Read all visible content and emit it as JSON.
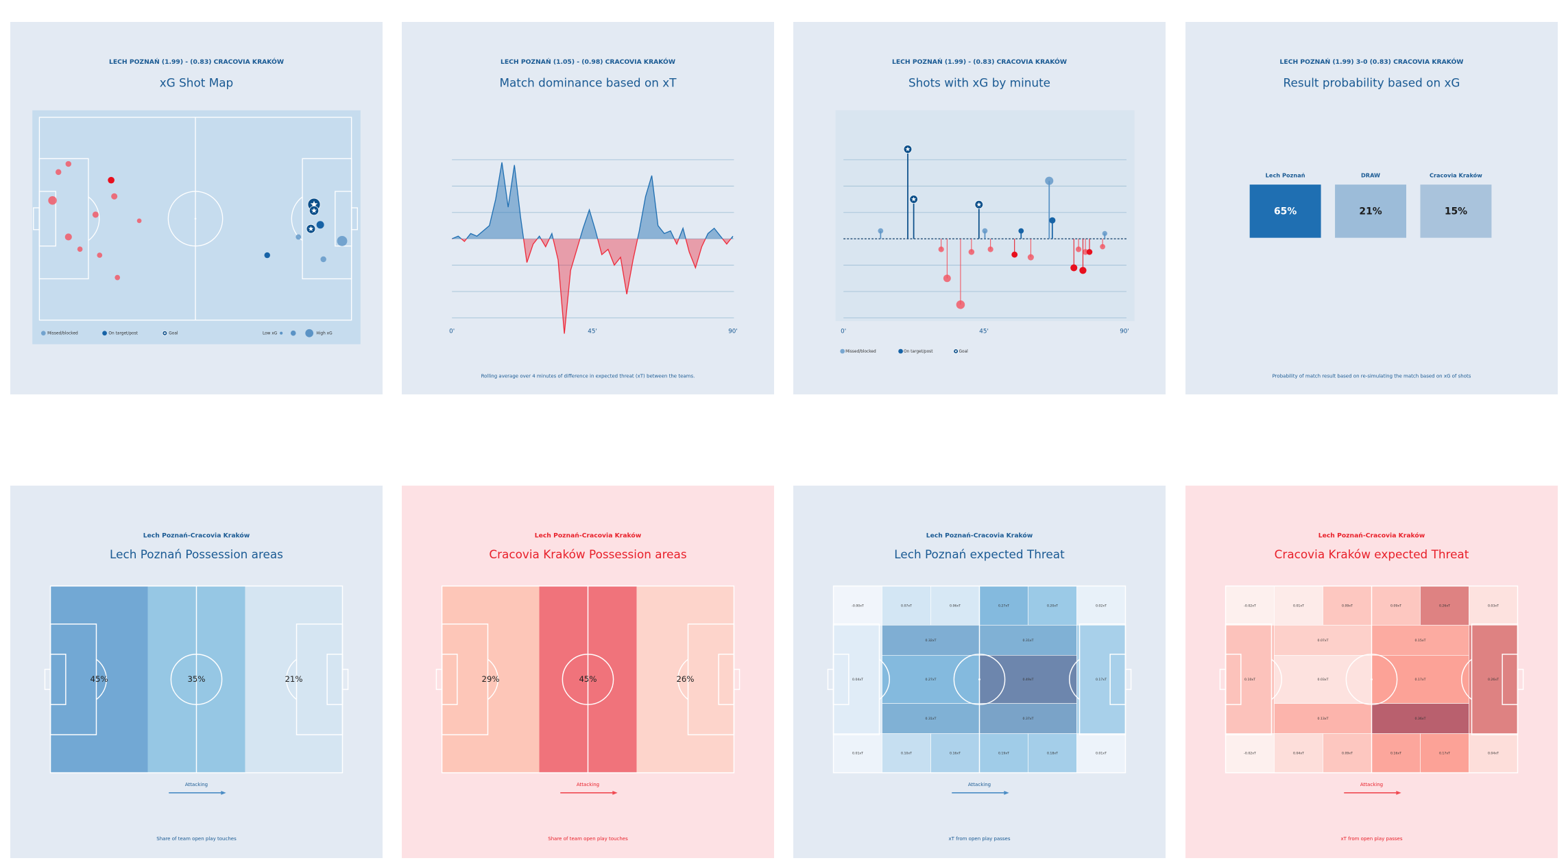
{
  "chart_data": [
    {
      "type": "scatter",
      "subtitle": "LECH POZNAŃ (1.99) - (0.83) CRACOVIA KRAKÓW",
      "title": "xG Shot Map",
      "background": "#e3eaf3",
      "theme_color": "#1a5a93",
      "pitch_color": "#c6dcee",
      "xlim": [
        0,
        100
      ],
      "ylim": [
        0,
        100
      ],
      "series": [
        {
          "marker": "missed",
          "color": "#f4505c",
          "x": [
            4.2,
            9.3,
            6.1,
            24,
            18,
            9.3,
            13,
            19.3,
            25,
            32
          ],
          "y": [
            41,
            23,
            27,
            39,
            48,
            59,
            65,
            68,
            79,
            51
          ],
          "xg": [
            0.12,
            0.03,
            0.03,
            0.04,
            0.04,
            0.06,
            0.02,
            0.02,
            0.02,
            0.01
          ]
        },
        {
          "marker": "on_target",
          "color": "#e8101e",
          "x": [
            23
          ],
          "y": [
            31
          ],
          "xg": [
            0.05
          ]
        },
        {
          "marker": "missed",
          "color": "#5b93c5",
          "x": [
            97,
            83,
            91
          ],
          "y": [
            61,
            59,
            70
          ],
          "xg": [
            0.2,
            0.02,
            0.03
          ]
        },
        {
          "marker": "on_target",
          "color": "#1763a6",
          "x": [
            90,
            73
          ],
          "y": [
            53,
            68
          ],
          "xg": [
            0.08,
            0.03
          ]
        },
        {
          "marker": "goal",
          "color": "#0c4f8a",
          "x": [
            88,
            88,
            87
          ],
          "y": [
            43,
            46,
            55
          ],
          "xg": [
            0.34,
            0.15,
            0.13
          ]
        }
      ],
      "legend": [
        {
          "label": "Missed/blocked",
          "marker": "missed",
          "color": "#5b93c5"
        },
        {
          "label": "On target/post",
          "marker": "on_target",
          "color": "#1763a6"
        },
        {
          "label": "Goal",
          "marker": "goal",
          "color": "#0c4f8a"
        }
      ],
      "size_legend": [
        "Low xG",
        "High xG"
      ]
    },
    {
      "type": "area",
      "subtitle": "LECH POZNAŃ (1.05) - (0.98) CRACOVIA KRAKÓW",
      "title": "Match dominance based on xT",
      "background": "#e3eaf3",
      "theme_color": "#1a5a93",
      "x": [
        0,
        2,
        4,
        6,
        8,
        10,
        12,
        14,
        16,
        18,
        20,
        22,
        24,
        26,
        28,
        30,
        32,
        34,
        36,
        38,
        40,
        42,
        44,
        46,
        48,
        50,
        52,
        54,
        56,
        58,
        60,
        62,
        64,
        66,
        68,
        70,
        72,
        74,
        76,
        78,
        80,
        82,
        84,
        86,
        88,
        90
      ],
      "values": [
        0,
        0.1,
        -0.1,
        0.2,
        0.1,
        0.3,
        0.5,
        1.5,
        2.9,
        1.2,
        2.8,
        0.8,
        -0.9,
        -0.2,
        0.1,
        -0.3,
        0.2,
        -0.8,
        -3.6,
        -1.2,
        -0.4,
        0.4,
        1.1,
        0.3,
        -0.6,
        -0.4,
        -1.0,
        -0.7,
        -2.1,
        -0.8,
        0.3,
        1.6,
        2.4,
        0.5,
        0.2,
        0.3,
        -0.2,
        0.4,
        -0.5,
        -1.1,
        -0.3,
        0.2,
        0.4,
        0.1,
        -0.2,
        0.1
      ],
      "xlim": [
        0,
        90
      ],
      "ylim": [
        -4,
        4
      ],
      "xticks": [
        {
          "value": 0,
          "label": "0'"
        },
        {
          "value": 45,
          "label": "45'"
        },
        {
          "value": 90,
          "label": "90'"
        }
      ],
      "yticks": [
        -3,
        -2,
        -1,
        0,
        1,
        2,
        3
      ],
      "grid": true,
      "positive_color": "#1f6fb2",
      "negative_color": "#ee2b3b",
      "note": "Rolling average over 4 minutes of difference in expected threat (xT) between the teams."
    },
    {
      "type": "lollipop",
      "subtitle": "LECH POZNAŃ (1.99) - (0.83) CRACOVIA KRAKÓW",
      "title": "Shots with xG by minute",
      "background": "#e3eaf3",
      "theme_color": "#1a5a93",
      "plot_color": "#d9e5f0",
      "xlim": [
        0,
        90
      ],
      "ylim": [
        -0.8,
        0.8
      ],
      "xticks": [
        {
          "value": 0,
          "label": "0'"
        },
        {
          "value": 45,
          "label": "45'"
        },
        {
          "value": 90,
          "label": "90'"
        }
      ],
      "yticks": [
        -0.6,
        -0.4,
        -0.2,
        0,
        0.2,
        0.4,
        0.6
      ],
      "grid": true,
      "series": [
        {
          "marker": "missed",
          "color": "#5b93c5",
          "direction": "up",
          "x": [
            11.9,
            45.3,
            65.9,
            83.7
          ],
          "values": [
            0.06,
            0.06,
            0.44,
            0.04
          ]
        },
        {
          "marker": "on_target",
          "color": "#1763a6",
          "direction": "up",
          "x": [
            56.9,
            66.9
          ],
          "values": [
            0.06,
            0.14
          ]
        },
        {
          "marker": "goal",
          "color": "#0c4f8a",
          "direction": "up",
          "x": [
            20.6,
            22.5,
            43.4
          ],
          "values": [
            0.68,
            0.3,
            0.26
          ]
        },
        {
          "marker": "missed",
          "color": "#f4505c",
          "direction": "down",
          "x": [
            31.3,
            33.2,
            37.5,
            41,
            47.1,
            60,
            75.3,
            77.5,
            83
          ],
          "values": [
            0.08,
            0.3,
            0.5,
            0.1,
            0.08,
            0.14,
            0.08,
            0.1,
            0.06
          ]
        },
        {
          "marker": "on_target",
          "color": "#e8101e",
          "direction": "down",
          "x": [
            54.8,
            73.8,
            76.7,
            78.8
          ],
          "values": [
            0.12,
            0.22,
            0.24,
            0.1
          ]
        }
      ],
      "legend": [
        {
          "label": "Missed/blocked",
          "marker": "missed",
          "color": "#5b93c5"
        },
        {
          "label": "On target/post",
          "marker": "on_target",
          "color": "#1763a6"
        },
        {
          "label": "Goal",
          "marker": "goal",
          "color": "#0c4f8a"
        }
      ]
    },
    {
      "type": "tiles",
      "subtitle": "LECH POZNAŃ (1.99) 3-0 (0.83) CRACOVIA KRAKÓW",
      "title": "Result probability based on xG",
      "background": "#e3eaf3",
      "theme_color": "#1a5a93",
      "categories": [
        "Lech Poznań",
        "DRAW",
        "Cracovia Kraków"
      ],
      "values": [
        65,
        21,
        15
      ],
      "value_labels": [
        "65%",
        "21%",
        "15%"
      ],
      "colors": [
        "#1f6fb2",
        "#9cbcd9",
        "#a9c3dc"
      ],
      "label_colors": [
        "#ffffff",
        "#1b1b1b",
        "#1b1b1b"
      ],
      "note": "Probability of match result based on re-simulating the match based on xG of shots"
    },
    {
      "type": "zones",
      "subtitle": "Lech Poznań-Cracovia Kraków",
      "title": "Lech Poznań Possession areas",
      "background": "#e3eaf3",
      "theme_color": "#1a5a93",
      "arrow_color": "#4a8cc4",
      "values": [
        45,
        35,
        21
      ],
      "value_labels": [
        "45%",
        "35%",
        "21%"
      ],
      "colors": [
        "#72a8d4",
        "#96c7e4",
        "#d5e5f2"
      ],
      "direction_label": "Attacking",
      "note": "Share of team open play touches"
    },
    {
      "type": "zones",
      "subtitle": "Lech Poznań-Cracovia Kraków",
      "title": "Cracovia Kraków Possession areas",
      "background": "#fde1e4",
      "theme_color": "#e8202a",
      "arrow_color": "#f04a52",
      "values": [
        29,
        45,
        26
      ],
      "value_labels": [
        "29%",
        "45%",
        "26%"
      ],
      "colors": [
        "#fdc6b8",
        "#f0737b",
        "#fdd4cb"
      ],
      "direction_label": "Attacking",
      "note": "Share of team open play touches"
    },
    {
      "type": "heatmap",
      "subtitle": "Lech Poznań-Cracovia Kraków",
      "title": "Lech Poznań expected Threat",
      "background": "#e3eaf3",
      "theme_color": "#1a5a93",
      "arrow_color": "#4a8cc4",
      "values": [
        0,
        0.07,
        0.06,
        0.27,
        0.2,
        0.02,
        0.04,
        0.32,
        0.31,
        0.27,
        0.49,
        0.31,
        0.37,
        0.17,
        0.01,
        0.1,
        0.16,
        0.19,
        0.18,
        0.01
      ],
      "value_labels": [
        "-0.00xT",
        "0.07xT",
        "0.06xT",
        "0.27xT",
        "0.20xT",
        "0.02xT",
        "0.04xT",
        "0.32xT",
        "0.31xT",
        "0.27xT",
        "0.49xT",
        "0.31xT",
        "0.37xT",
        "0.17xT",
        "0.01xT",
        "0.10xT",
        "0.16xT",
        "0.19xT",
        "0.18xT",
        "0.01xT"
      ],
      "clim": [
        0,
        0.5
      ],
      "colorscale": [
        "#f1f5fb",
        "#86bfe2",
        "#6c84ab"
      ],
      "direction_label": "Attacking",
      "note": "xT from open play passes"
    },
    {
      "type": "heatmap",
      "subtitle": "Lech Poznań-Cracovia Kraków",
      "title": "Cracovia Kraków expected Threat",
      "background": "#fde1e4",
      "theme_color": "#e8202a",
      "arrow_color": "#f04a52",
      "values": [
        -0.02,
        0.01,
        0.09,
        0.09,
        0.26,
        0.03,
        0.1,
        0.07,
        0.15,
        0.03,
        0.17,
        0.13,
        0.36,
        0.26,
        -0.02,
        0.04,
        0.09,
        0.16,
        0.17,
        0.04
      ],
      "value_labels": [
        "-0.02xT",
        "0.01xT",
        "0.09xT",
        "0.09xT",
        "0.26xT",
        "0.03xT",
        "0.10xT",
        "0.07xT",
        "0.15xT",
        "0.03xT",
        "0.17xT",
        "0.13xT",
        "0.36xT",
        "0.26xT",
        "-0.02xT",
        "0.04xT",
        "0.09xT",
        "0.16xT",
        "0.17xT",
        "0.04xT"
      ],
      "clim": [
        0,
        0.36
      ],
      "colorscale": [
        "#fdf0ee",
        "#fc9d92",
        "#b9606e"
      ],
      "direction_label": "Attacking",
      "note": "xT from open play passes"
    }
  ]
}
